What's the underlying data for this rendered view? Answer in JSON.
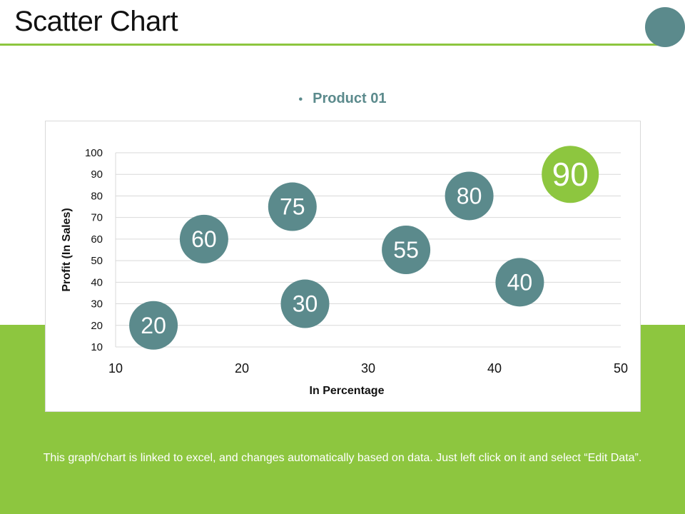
{
  "slide": {
    "title": "Scatter Chart",
    "footer": "This graph/chart is linked to excel, and changes automatically based on data. Just left click on it and select “Edit Data”."
  },
  "colors": {
    "accent_green": "#8dc63f",
    "teal": "#5b8a8c"
  },
  "chart_data": {
    "type": "scatter",
    "legend": [
      "Product 01"
    ],
    "legend_placement": "top-center",
    "xlabel": "In Percentage",
    "ylabel": "Profit  (In Sales)",
    "xlim": [
      10,
      50
    ],
    "ylim": [
      10,
      100
    ],
    "x_ticks": [
      10,
      20,
      30,
      40,
      50
    ],
    "y_ticks": [
      10,
      20,
      30,
      40,
      50,
      60,
      70,
      80,
      90,
      100
    ],
    "grid": true,
    "series": [
      {
        "name": "Product 01",
        "points": [
          {
            "x": 13,
            "y": 20,
            "label": "20"
          },
          {
            "x": 17,
            "y": 60,
            "label": "60"
          },
          {
            "x": 24,
            "y": 75,
            "label": "75"
          },
          {
            "x": 25,
            "y": 30,
            "label": "30"
          },
          {
            "x": 33,
            "y": 55,
            "label": "55"
          },
          {
            "x": 38,
            "y": 80,
            "label": "80"
          },
          {
            "x": 42,
            "y": 40,
            "label": "40"
          },
          {
            "x": 46,
            "y": 90,
            "label": "90",
            "highlight": true
          }
        ]
      }
    ]
  }
}
